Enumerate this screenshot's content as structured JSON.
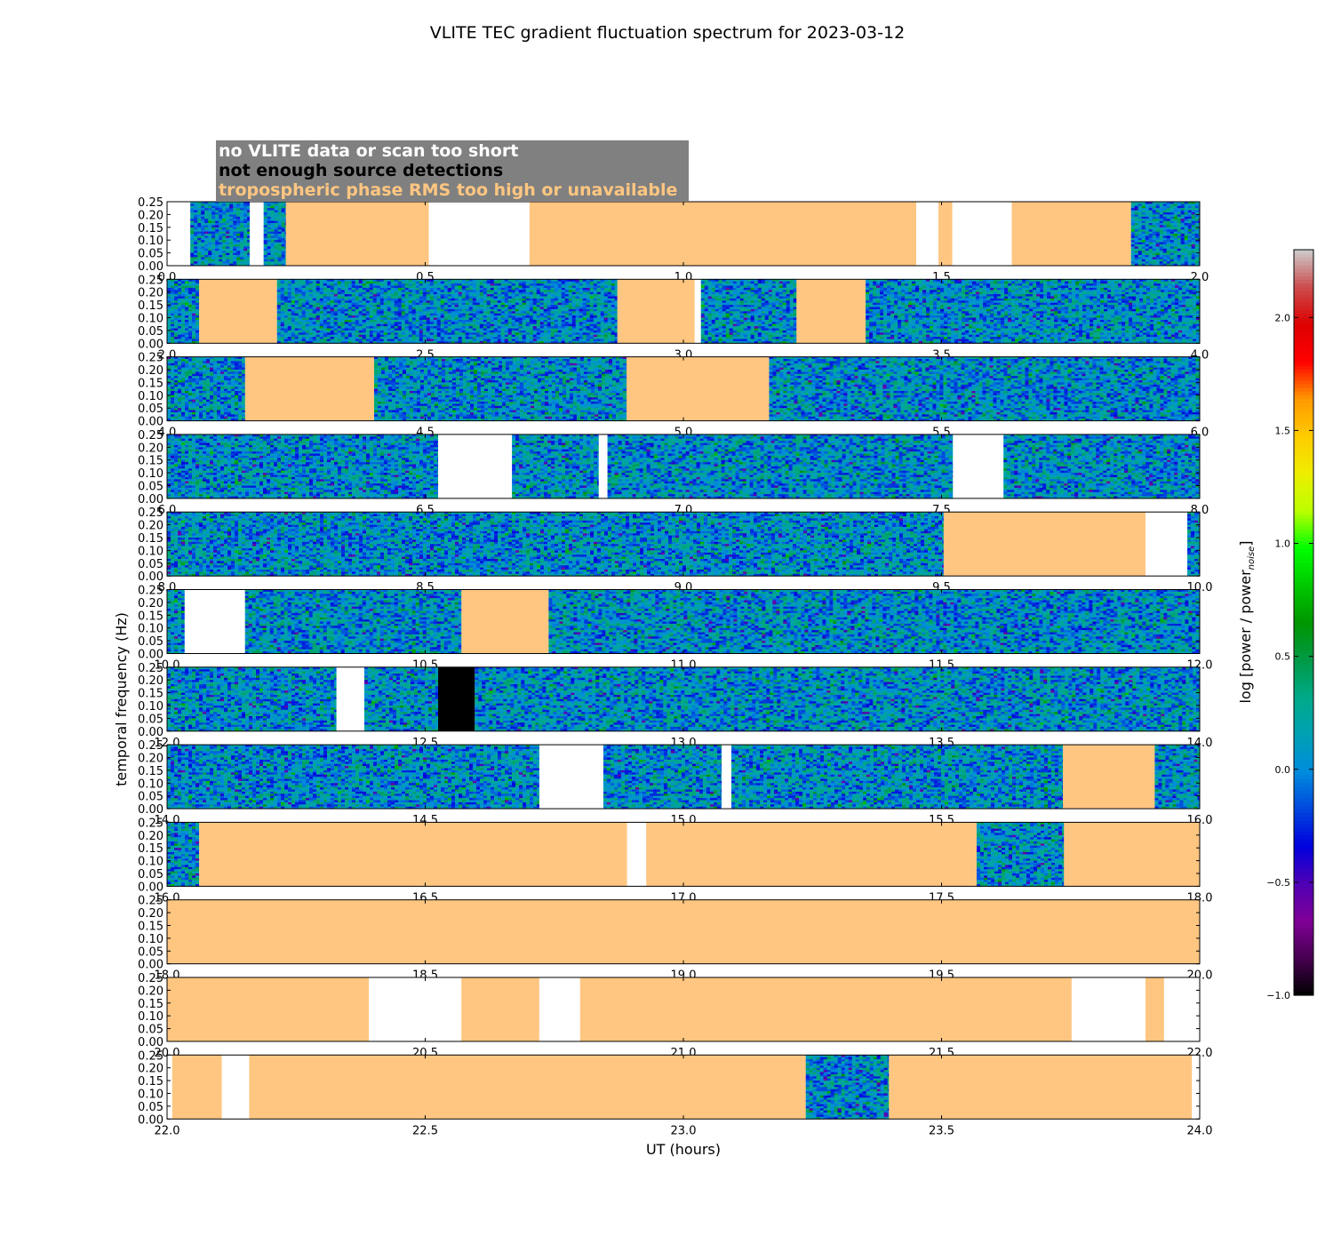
{
  "chart_data": {
    "type": "heatmap",
    "title": "VLITE TEC gradient fluctuation spectrum for 2023-03-12",
    "xlabel": "UT (hours)",
    "ylabel": "temporal frequency (Hz)",
    "colorbar_label": "log [power / power",
    "colorbar_label_sub": "noise",
    "colorbar_label_close": "]",
    "colormap": "nipy_spectral",
    "clim": [
      -1.0,
      2.3
    ],
    "colorbar_ticks": [
      "-1.0",
      "-0.5",
      "0.0",
      "0.5",
      "1.0",
      "1.5",
      "2.0"
    ],
    "ylim": [
      0,
      0.25
    ],
    "y_ticks": [
      "0.00",
      "0.05",
      "0.10",
      "0.15",
      "0.20",
      "0.25"
    ],
    "legend": [
      {
        "text": "no VLITE data or scan too short",
        "color": "#ffffff"
      },
      {
        "text": "not enough source detections",
        "color": "#000000"
      },
      {
        "text": "tropospheric phase RMS too high or unavailable",
        "color": "#ffc681"
      }
    ],
    "status_colors": {
      "none": "#ffffff",
      "detect": "#000000",
      "tropo": "#ffc681"
    },
    "panels": [
      {
        "xlim": [
          0,
          2
        ],
        "x_ticks": [
          "0.0",
          "0.5",
          "1.0",
          "1.5",
          "2.0"
        ],
        "segments": [
          [
            0,
            0.045,
            "none"
          ],
          [
            0.045,
            0.16,
            "data"
          ],
          [
            0.16,
            0.187,
            "none"
          ],
          [
            0.187,
            0.23,
            "data"
          ],
          [
            0.23,
            0.507,
            "tropo"
          ],
          [
            0.507,
            0.702,
            "none"
          ],
          [
            0.702,
            1.451,
            "tropo"
          ],
          [
            1.451,
            1.494,
            "none"
          ],
          [
            1.494,
            1.521,
            "tropo"
          ],
          [
            1.521,
            1.636,
            "none"
          ],
          [
            1.636,
            1.867,
            "tropo"
          ],
          [
            1.867,
            2.0,
            "data"
          ]
        ]
      },
      {
        "xlim": [
          2,
          4
        ],
        "x_ticks": [
          "2.0",
          "2.5",
          "3.0",
          "3.5",
          "4.0"
        ],
        "segments": [
          [
            2.0,
            2.062,
            "data"
          ],
          [
            2.062,
            2.213,
            "tropo"
          ],
          [
            2.213,
            2.872,
            "data"
          ],
          [
            2.872,
            3.022,
            "tropo"
          ],
          [
            3.022,
            3.034,
            "none"
          ],
          [
            3.034,
            3.219,
            "data"
          ],
          [
            3.219,
            3.353,
            "tropo"
          ],
          [
            3.353,
            4.0,
            "data"
          ]
        ]
      },
      {
        "xlim": [
          4,
          6
        ],
        "x_ticks": [
          "4.0",
          "4.5",
          "5.0",
          "5.5",
          "6.0"
        ],
        "segments": [
          [
            4.0,
            4.151,
            "data"
          ],
          [
            4.151,
            4.401,
            "tropo"
          ],
          [
            4.401,
            4.89,
            "data"
          ],
          [
            4.89,
            5.166,
            "tropo"
          ],
          [
            5.166,
            6.0,
            "data"
          ]
        ]
      },
      {
        "xlim": [
          6,
          8
        ],
        "x_ticks": [
          "6.0",
          "6.5",
          "7.0",
          "7.5",
          "8.0"
        ],
        "segments": [
          [
            6.0,
            6.525,
            "data"
          ],
          [
            6.525,
            6.668,
            "none"
          ],
          [
            6.668,
            6.836,
            "data"
          ],
          [
            6.836,
            6.853,
            "none"
          ],
          [
            6.853,
            7.522,
            "data"
          ],
          [
            7.522,
            7.62,
            "none"
          ],
          [
            7.62,
            8.0,
            "data"
          ]
        ]
      },
      {
        "xlim": [
          8,
          10
        ],
        "x_ticks": [
          "8.0",
          "8.5",
          "9.0",
          "9.5",
          "10.0"
        ],
        "segments": [
          [
            8.0,
            9.504,
            "data"
          ],
          [
            9.504,
            9.895,
            "tropo"
          ],
          [
            9.895,
            9.976,
            "none"
          ],
          [
            9.976,
            10.0,
            "data"
          ]
        ]
      },
      {
        "xlim": [
          10,
          12
        ],
        "x_ticks": [
          "10.0",
          "10.5",
          "11.0",
          "11.5",
          "12.0"
        ],
        "segments": [
          [
            10.0,
            10.034,
            "data"
          ],
          [
            10.034,
            10.151,
            "none"
          ],
          [
            10.151,
            10.57,
            "data"
          ],
          [
            10.57,
            10.739,
            "tropo"
          ],
          [
            10.739,
            12.0,
            "data"
          ]
        ]
      },
      {
        "xlim": [
          12,
          14
        ],
        "x_ticks": [
          "12.0",
          "12.5",
          "13.0",
          "13.5",
          "14.0"
        ],
        "segments": [
          [
            12.0,
            12.328,
            "data"
          ],
          [
            12.328,
            12.382,
            "none"
          ],
          [
            12.382,
            12.525,
            "data"
          ],
          [
            12.525,
            12.596,
            "detect"
          ],
          [
            12.596,
            14.0,
            "data"
          ]
        ]
      },
      {
        "xlim": [
          14,
          16
        ],
        "x_ticks": [
          "14.0",
          "14.5",
          "15.0",
          "15.5",
          "16.0"
        ],
        "segments": [
          [
            14.0,
            14.721,
            "data"
          ],
          [
            14.721,
            14.845,
            "none"
          ],
          [
            14.845,
            15.074,
            "data"
          ],
          [
            15.074,
            15.093,
            "none"
          ],
          [
            15.093,
            15.735,
            "data"
          ],
          [
            15.735,
            15.913,
            "tropo"
          ],
          [
            15.913,
            16.0,
            "data"
          ]
        ]
      },
      {
        "xlim": [
          16,
          18
        ],
        "x_ticks": [
          "16.0",
          "16.5",
          "17.0",
          "17.5",
          "18.0"
        ],
        "segments": [
          [
            16.0,
            16.062,
            "data"
          ],
          [
            16.062,
            16.891,
            "tropo"
          ],
          [
            16.891,
            16.928,
            "none"
          ],
          [
            16.928,
            17.568,
            "tropo"
          ],
          [
            17.568,
            17.737,
            "data"
          ],
          [
            17.737,
            18.0,
            "tropo"
          ]
        ]
      },
      {
        "xlim": [
          18,
          20
        ],
        "x_ticks": [
          "18.0",
          "18.5",
          "19.0",
          "19.5",
          "20.0"
        ],
        "segments": [
          [
            18.0,
            20.0,
            "tropo"
          ]
        ]
      },
      {
        "xlim": [
          20,
          22
        ],
        "x_ticks": [
          "20.0",
          "20.5",
          "21.0",
          "21.5",
          "22.0"
        ],
        "segments": [
          [
            20.0,
            20.391,
            "tropo"
          ],
          [
            20.391,
            20.57,
            "none"
          ],
          [
            20.57,
            20.721,
            "tropo"
          ],
          [
            20.721,
            20.8,
            "none"
          ],
          [
            20.8,
            21.752,
            "tropo"
          ],
          [
            21.752,
            21.895,
            "none"
          ],
          [
            21.895,
            21.931,
            "tropo"
          ],
          [
            21.931,
            22.0,
            "none"
          ]
        ]
      },
      {
        "xlim": [
          22,
          24
        ],
        "x_ticks": [
          "22.0",
          "22.5",
          "23.0",
          "23.5",
          "24.0"
        ],
        "segments": [
          [
            22.0,
            22.01,
            "none"
          ],
          [
            22.01,
            22.106,
            "tropo"
          ],
          [
            22.106,
            22.159,
            "none"
          ],
          [
            22.159,
            23.237,
            "tropo"
          ],
          [
            23.237,
            23.398,
            "data"
          ],
          [
            23.398,
            23.985,
            "tropo"
          ],
          [
            23.985,
            24.0,
            "none"
          ]
        ]
      }
    ]
  }
}
